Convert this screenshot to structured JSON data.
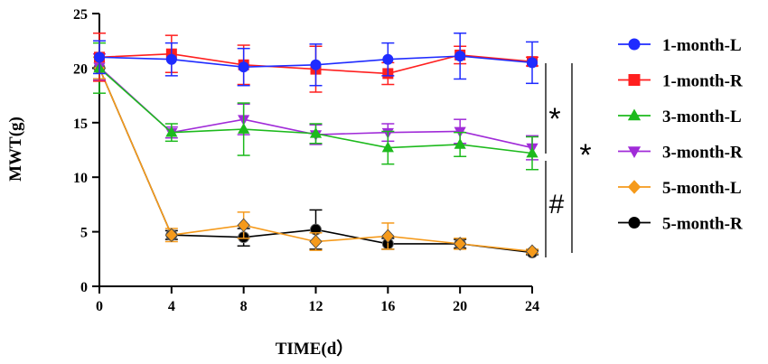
{
  "chart_data": {
    "type": "line",
    "title": "",
    "xlabel": "TIME(d）",
    "ylabel": "MWT(g)",
    "x": [
      0,
      4,
      8,
      12,
      16,
      20,
      24
    ],
    "x_ticks": [
      "0",
      "4",
      "8",
      "12",
      "16",
      "20",
      "24"
    ],
    "y_ticks": [
      "0",
      "5",
      "10",
      "15",
      "20",
      "25"
    ],
    "xlim": [
      0,
      24
    ],
    "ylim": [
      0,
      25
    ],
    "grid": false,
    "legend_position": "right",
    "series": [
      {
        "name": "1-month-L",
        "color": "#1f2bff",
        "marker": "circle",
        "values": [
          21.0,
          20.8,
          20.1,
          20.3,
          20.8,
          21.1,
          20.5
        ],
        "errors": [
          1.5,
          1.5,
          1.7,
          1.9,
          1.5,
          2.1,
          1.9
        ]
      },
      {
        "name": "1-month-R",
        "color": "#ff1f1f",
        "marker": "square",
        "values": [
          21.0,
          21.3,
          20.3,
          19.9,
          19.5,
          21.2,
          20.6
        ],
        "errors": [
          2.2,
          1.7,
          1.8,
          2.1,
          1.0,
          0.8,
          0.4
        ]
      },
      {
        "name": "3-month-L",
        "color": "#1dba1d",
        "marker": "triangle-up",
        "values": [
          20.0,
          14.1,
          14.4,
          14.0,
          12.7,
          13.0,
          12.2
        ],
        "errors": [
          2.3,
          0.8,
          2.4,
          0.9,
          1.5,
          1.1,
          1.5
        ]
      },
      {
        "name": "3-month-R",
        "color": "#a02bd8",
        "marker": "triangle-down",
        "values": [
          20.1,
          14.1,
          15.3,
          13.9,
          14.1,
          14.2,
          12.7
        ],
        "errors": [
          1.2,
          0.5,
          1.4,
          0.9,
          0.8,
          1.1,
          1.1
        ]
      },
      {
        "name": "5-month-L",
        "color": "#f59a1b",
        "marker": "diamond",
        "values": [
          20.0,
          4.7,
          5.6,
          4.1,
          4.6,
          3.9,
          3.2
        ],
        "errors": [
          1.0,
          0.6,
          1.2,
          0.8,
          1.2,
          0.5,
          0.2
        ]
      },
      {
        "name": "5-month-R",
        "color": "#000000",
        "marker": "circle",
        "values": [
          20.0,
          4.7,
          4.5,
          5.2,
          3.9,
          3.9,
          3.1
        ],
        "errors": [
          1.0,
          0.4,
          0.8,
          1.8,
          0.5,
          0.4,
          0.2
        ]
      }
    ],
    "annotations": [
      "*",
      "#",
      "*"
    ]
  }
}
